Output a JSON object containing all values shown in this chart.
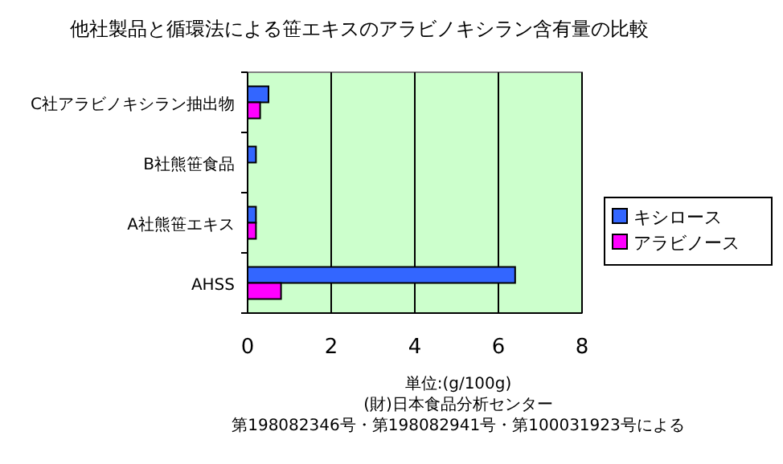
{
  "chart_data": {
    "type": "bar",
    "orientation": "horizontal",
    "title": "他社製品と循環法による笹エキスのアラビノキシラン含有量の比較",
    "categories": [
      "C社アラビノキシラン抽出物",
      "B社熊笹食品",
      "A社熊笹エキス",
      "AHSS"
    ],
    "series": [
      {
        "name": "キシロース",
        "color": "#3366ff",
        "values": [
          0.5,
          0.2,
          0.2,
          6.4
        ]
      },
      {
        "name": "アラビノース",
        "color": "#ff00ff",
        "values": [
          0.3,
          null,
          0.2,
          0.8
        ]
      }
    ],
    "xlim": [
      0,
      8
    ],
    "xticks": [
      0,
      2,
      4,
      6,
      8
    ],
    "grid": "x",
    "legend": "right",
    "annotations": [
      "単位:(g/100g)",
      "(財)日本食品分析センター",
      "第198082346号・第198082941号・第100031923号による"
    ]
  }
}
